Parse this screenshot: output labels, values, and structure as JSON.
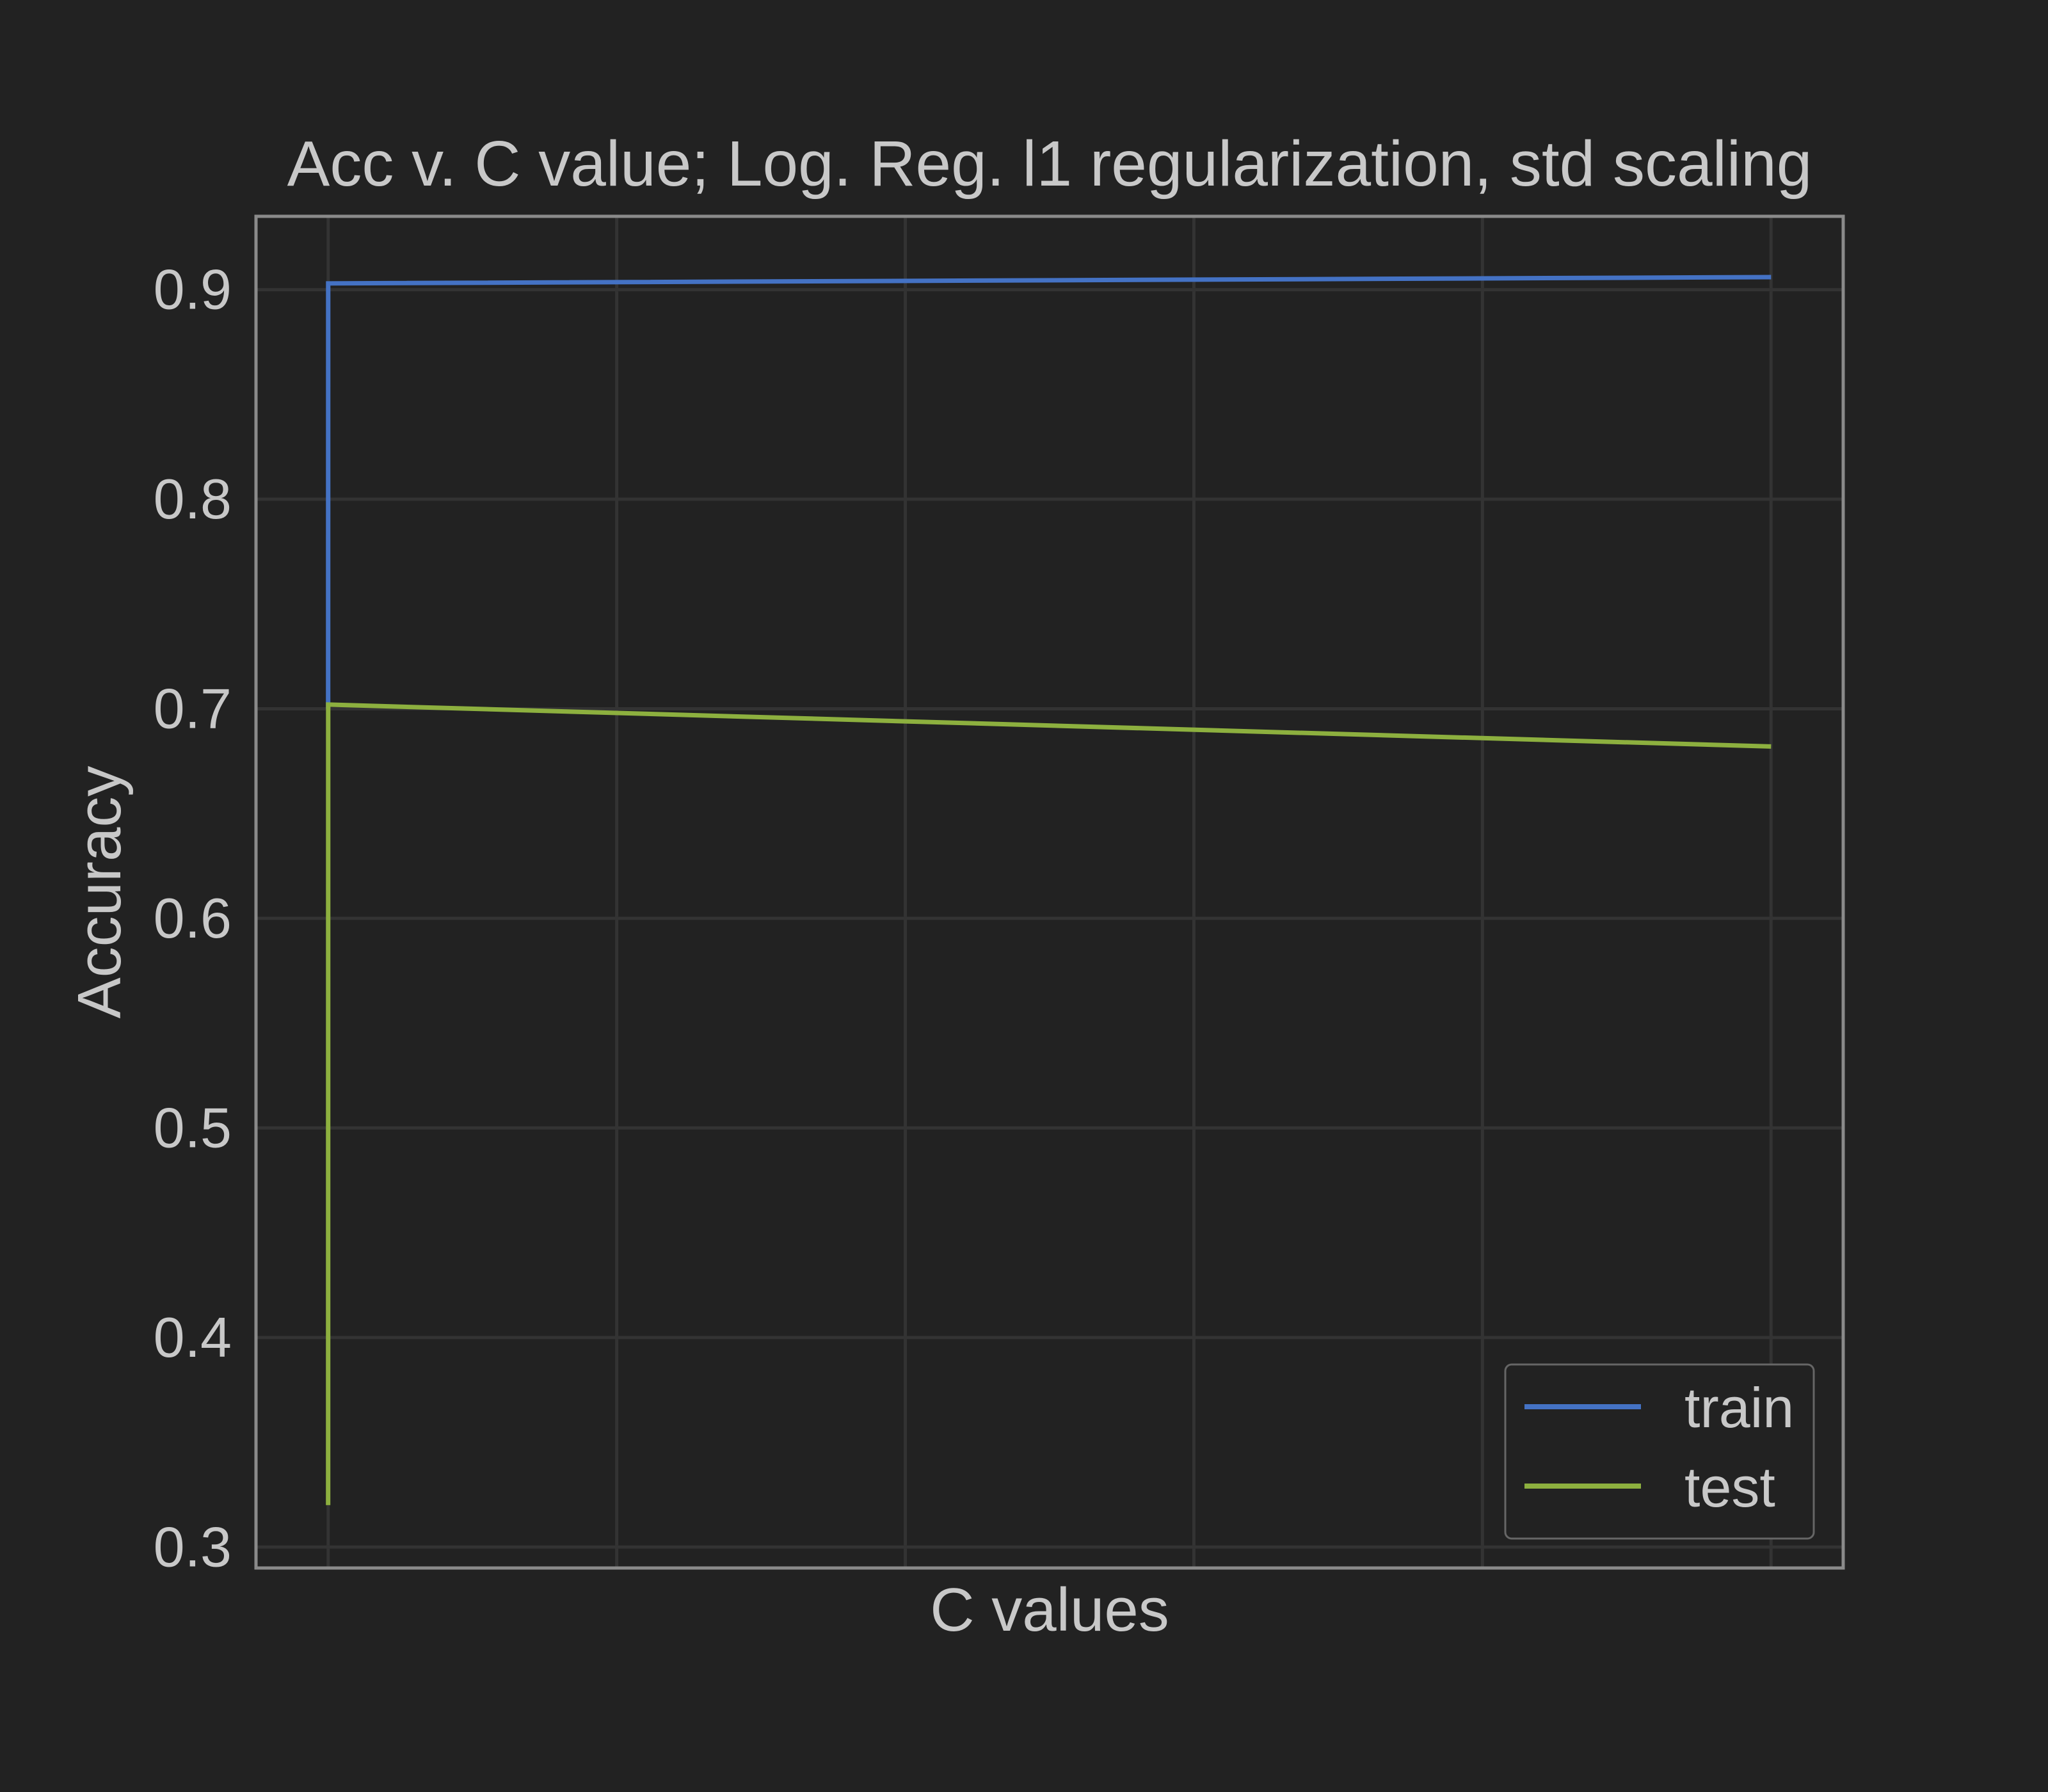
{
  "chart_data": {
    "type": "line",
    "title": "Acc v. C value; Log. Reg. l1 regularization, std scaling",
    "xlabel": "C values",
    "ylabel": "Accuracy",
    "xlim": [
      -0.25,
      5.25
    ],
    "ylim": [
      0.29,
      0.935
    ],
    "x_gridlines": [
      0,
      1,
      2,
      3,
      4,
      5
    ],
    "yticks": [
      0.3,
      0.4,
      0.5,
      0.6,
      0.7,
      0.8,
      0.9
    ],
    "ytick_labels": [
      "0.3",
      "0.4",
      "0.5",
      "0.6",
      "0.7",
      "0.8",
      "0.9"
    ],
    "grid": true,
    "legend_position": "bottom-right",
    "series": [
      {
        "name": "train",
        "color": "#4472c4",
        "x": [
          0,
          0.0001,
          5
        ],
        "y": [
          0.7,
          0.903,
          0.906
        ]
      },
      {
        "name": "test",
        "color": "#8db03f",
        "x": [
          0,
          0.0001,
          5
        ],
        "y": [
          0.32,
          0.702,
          0.682
        ]
      }
    ],
    "colors": {
      "background": "#222222",
      "grid": "#333333",
      "spine": "#8a8a8a",
      "text": "#c8c8c8",
      "legend_border": "#666666"
    }
  }
}
